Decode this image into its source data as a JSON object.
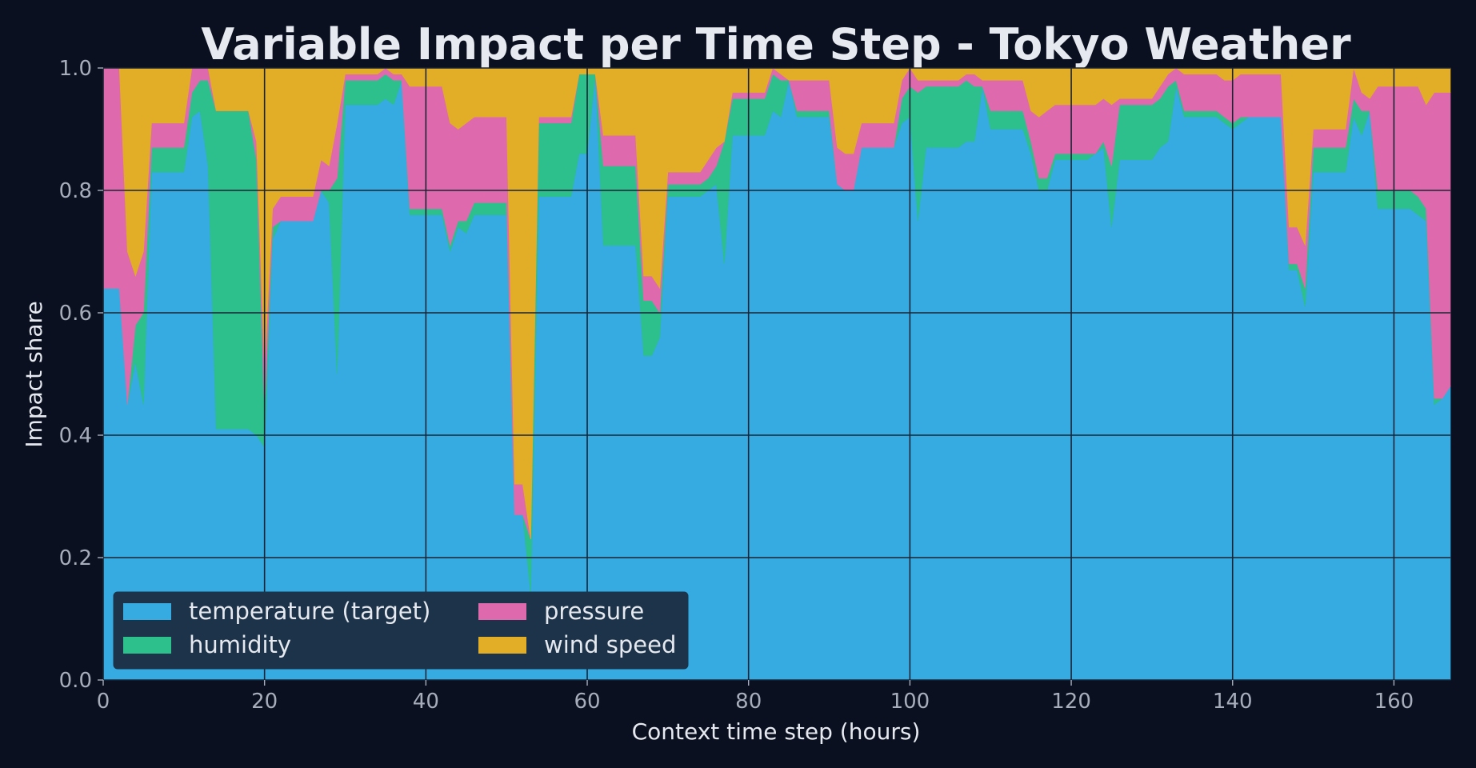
{
  "chart_data": {
    "type": "area",
    "stacked": true,
    "normalized": true,
    "title": "Variable Impact per Time Step - Tokyo Weather",
    "xlabel": "Context time step (hours)",
    "ylabel": "Impact share",
    "xlim": [
      0,
      167
    ],
    "ylim": [
      0,
      1
    ],
    "xticks": [
      0,
      20,
      40,
      60,
      80,
      100,
      120,
      140,
      160
    ],
    "yticks": [
      0.0,
      0.2,
      0.4,
      0.6,
      0.8,
      1.0
    ],
    "ytick_labels": [
      "0.0",
      "0.2",
      "0.4",
      "0.6",
      "0.8",
      "1.0"
    ],
    "grid": true,
    "legend_position": "lower-left",
    "background": "#0b1020",
    "x": [
      0,
      2,
      3,
      4,
      5,
      6,
      10,
      11,
      12,
      13,
      14,
      18,
      19,
      20,
      21,
      22,
      26,
      27,
      28,
      29,
      30,
      34,
      35,
      36,
      37,
      38,
      42,
      43,
      44,
      45,
      46,
      50,
      51,
      52,
      53,
      54,
      58,
      59,
      60,
      61,
      62,
      66,
      67,
      68,
      69,
      70,
      74,
      75,
      76,
      77,
      78,
      82,
      83,
      84,
      85,
      86,
      90,
      91,
      92,
      93,
      94,
      98,
      99,
      100,
      101,
      102,
      106,
      107,
      108,
      109,
      110,
      114,
      115,
      116,
      117,
      118,
      122,
      123,
      124,
      125,
      126,
      130,
      131,
      132,
      133,
      134,
      138,
      139,
      140,
      141,
      142,
      146,
      147,
      148,
      149,
      150,
      154,
      155,
      156,
      157,
      158,
      162,
      163,
      164,
      165,
      166,
      167
    ],
    "series": [
      {
        "name": "temperature (target)",
        "color": "#35abe2",
        "values": [
          0.64,
          0.64,
          0.45,
          0.52,
          0.45,
          0.83,
          0.83,
          0.92,
          0.93,
          0.84,
          0.41,
          0.41,
          0.4,
          0.38,
          0.72,
          0.75,
          0.75,
          0.8,
          0.78,
          0.5,
          0.94,
          0.94,
          0.95,
          0.94,
          0.98,
          0.76,
          0.76,
          0.7,
          0.74,
          0.73,
          0.76,
          0.76,
          0.27,
          0.27,
          0.14,
          0.79,
          0.79,
          0.86,
          0.86,
          0.99,
          0.71,
          0.71,
          0.53,
          0.53,
          0.56,
          0.79,
          0.79,
          0.8,
          0.81,
          0.68,
          0.89,
          0.89,
          0.93,
          0.92,
          0.98,
          0.92,
          0.92,
          0.81,
          0.8,
          0.8,
          0.87,
          0.87,
          0.91,
          0.92,
          0.75,
          0.87,
          0.87,
          0.88,
          0.88,
          0.97,
          0.9,
          0.9,
          0.86,
          0.8,
          0.8,
          0.85,
          0.85,
          0.86,
          0.87,
          0.74,
          0.85,
          0.85,
          0.87,
          0.88,
          0.97,
          0.92,
          0.92,
          0.91,
          0.9,
          0.91,
          0.92,
          0.92,
          0.67,
          0.67,
          0.61,
          0.83,
          0.83,
          0.92,
          0.89,
          0.93,
          0.77,
          0.77,
          0.76,
          0.75,
          0.45,
          0.46,
          0.48
        ]
      },
      {
        "name": "humidity",
        "color": "#2dbf8c",
        "values": [
          0.0,
          0.0,
          0.0,
          0.06,
          0.15,
          0.04,
          0.04,
          0.04,
          0.05,
          0.14,
          0.52,
          0.52,
          0.45,
          0.06,
          0.02,
          0.0,
          0.0,
          0.0,
          0.02,
          0.32,
          0.04,
          0.04,
          0.04,
          0.04,
          0.0,
          0.01,
          0.01,
          0.01,
          0.01,
          0.02,
          0.02,
          0.02,
          0.0,
          0.0,
          0.09,
          0.12,
          0.12,
          0.13,
          0.13,
          0.0,
          0.13,
          0.13,
          0.09,
          0.09,
          0.04,
          0.02,
          0.02,
          0.02,
          0.03,
          0.2,
          0.06,
          0.06,
          0.06,
          0.06,
          0.0,
          0.01,
          0.01,
          0.0,
          0.0,
          0.0,
          0.0,
          0.0,
          0.04,
          0.05,
          0.21,
          0.1,
          0.1,
          0.1,
          0.09,
          0.0,
          0.03,
          0.03,
          0.02,
          0.02,
          0.02,
          0.01,
          0.01,
          0.0,
          0.01,
          0.1,
          0.09,
          0.09,
          0.08,
          0.09,
          0.01,
          0.01,
          0.01,
          0.01,
          0.01,
          0.01,
          0.0,
          0.0,
          0.01,
          0.01,
          0.03,
          0.04,
          0.04,
          0.03,
          0.04,
          0.0,
          0.03,
          0.03,
          0.03,
          0.02,
          0.01,
          0.0,
          0.0
        ]
      },
      {
        "name": "pressure",
        "color": "#de6aad",
        "values": [
          0.36,
          0.36,
          0.25,
          0.08,
          0.1,
          0.04,
          0.04,
          0.05,
          0.05,
          0.02,
          0.0,
          0.0,
          0.03,
          0.07,
          0.03,
          0.04,
          0.04,
          0.05,
          0.04,
          0.09,
          0.01,
          0.01,
          0.01,
          0.01,
          0.01,
          0.2,
          0.2,
          0.2,
          0.15,
          0.16,
          0.14,
          0.14,
          0.05,
          0.05,
          0.0,
          0.01,
          0.01,
          0.0,
          0.0,
          0.0,
          0.05,
          0.05,
          0.04,
          0.04,
          0.04,
          0.02,
          0.02,
          0.03,
          0.03,
          0.0,
          0.01,
          0.01,
          0.01,
          0.01,
          0.0,
          0.05,
          0.05,
          0.06,
          0.06,
          0.06,
          0.04,
          0.04,
          0.03,
          0.03,
          0.02,
          0.01,
          0.01,
          0.01,
          0.02,
          0.01,
          0.05,
          0.05,
          0.05,
          0.1,
          0.11,
          0.08,
          0.08,
          0.08,
          0.07,
          0.1,
          0.01,
          0.01,
          0.02,
          0.02,
          0.02,
          0.06,
          0.06,
          0.06,
          0.07,
          0.07,
          0.07,
          0.07,
          0.06,
          0.06,
          0.07,
          0.03,
          0.03,
          0.05,
          0.03,
          0.02,
          0.17,
          0.17,
          0.18,
          0.17,
          0.5,
          0.5,
          0.48
        ]
      },
      {
        "name": "wind speed",
        "color": "#e2ad27",
        "values": [
          0.0,
          0.0,
          0.3,
          0.34,
          0.3,
          0.09,
          0.09,
          0.0,
          0.0,
          0.0,
          0.07,
          0.07,
          0.12,
          0.49,
          0.23,
          0.21,
          0.21,
          0.15,
          0.16,
          0.09,
          0.01,
          0.01,
          0.0,
          0.01,
          0.01,
          0.03,
          0.03,
          0.09,
          0.1,
          0.09,
          0.08,
          0.08,
          0.68,
          0.68,
          0.77,
          0.08,
          0.08,
          0.01,
          0.01,
          0.01,
          0.11,
          0.11,
          0.34,
          0.34,
          0.36,
          0.17,
          0.17,
          0.15,
          0.13,
          0.12,
          0.04,
          0.04,
          0.0,
          0.01,
          0.02,
          0.02,
          0.02,
          0.13,
          0.14,
          0.14,
          0.09,
          0.09,
          0.02,
          0.0,
          0.02,
          0.02,
          0.02,
          0.01,
          0.01,
          0.02,
          0.02,
          0.02,
          0.07,
          0.08,
          0.07,
          0.06,
          0.06,
          0.06,
          0.05,
          0.06,
          0.05,
          0.05,
          0.03,
          0.01,
          0.0,
          0.01,
          0.01,
          0.02,
          0.02,
          0.01,
          0.01,
          0.01,
          0.26,
          0.26,
          0.29,
          0.1,
          0.1,
          0.0,
          0.04,
          0.05,
          0.03,
          0.03,
          0.03,
          0.06,
          0.04,
          0.04,
          0.04
        ]
      }
    ]
  }
}
